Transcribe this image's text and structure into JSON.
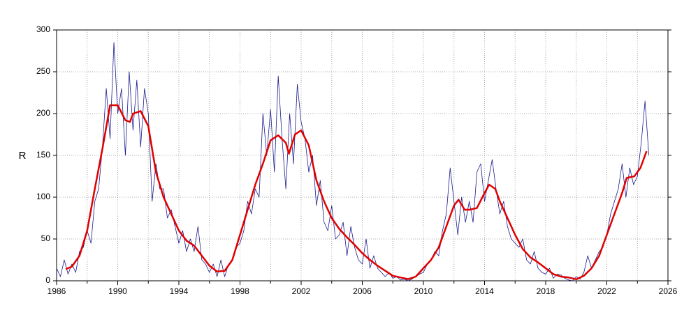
{
  "chart_data": {
    "type": "line",
    "ylabel": "R",
    "xlim": [
      1986,
      2026
    ],
    "ylim": [
      0,
      300
    ],
    "xticks": [
      1986,
      1990,
      1994,
      1998,
      2002,
      2006,
      2010,
      2014,
      2018,
      2022,
      2026
    ],
    "x_minor_ticks": [
      1988,
      1992,
      1996,
      2000,
      2004,
      2008,
      2012,
      2016,
      2020,
      2024
    ],
    "yticks": [
      0,
      50,
      100,
      150,
      200,
      250,
      300
    ],
    "grid": true,
    "series": [
      {
        "color": "#1a1a8c",
        "x": [
          1986,
          1986.25,
          1986.5,
          1986.75,
          1987,
          1987.25,
          1987.5,
          1987.75,
          1988,
          1988.25,
          1988.5,
          1988.75,
          1989,
          1989.25,
          1989.5,
          1989.75,
          1990,
          1990.25,
          1990.5,
          1990.75,
          1991,
          1991.25,
          1991.5,
          1991.75,
          1992,
          1992.25,
          1992.5,
          1992.75,
          1993,
          1993.25,
          1993.5,
          1993.75,
          1994,
          1994.25,
          1994.5,
          1994.75,
          1995,
          1995.25,
          1995.5,
          1995.75,
          1996,
          1996.25,
          1996.5,
          1996.75,
          1997,
          1997.25,
          1997.5,
          1997.75,
          1998,
          1998.25,
          1998.5,
          1998.75,
          1999,
          1999.25,
          1999.5,
          1999.75,
          2000,
          2000.25,
          2000.5,
          2000.75,
          2001,
          2001.25,
          2001.5,
          2001.75,
          2002,
          2002.25,
          2002.5,
          2002.75,
          2003,
          2003.25,
          2003.5,
          2003.75,
          2004,
          2004.25,
          2004.5,
          2004.75,
          2005,
          2005.25,
          2005.5,
          2005.75,
          2006,
          2006.25,
          2006.5,
          2006.75,
          2007,
          2007.25,
          2007.5,
          2007.75,
          2008,
          2008.25,
          2008.5,
          2008.75,
          2009,
          2009.25,
          2009.5,
          2009.75,
          2010,
          2010.25,
          2010.5,
          2010.75,
          2011,
          2011.25,
          2011.5,
          2011.75,
          2012,
          2012.25,
          2012.5,
          2012.75,
          2013,
          2013.25,
          2013.5,
          2013.75,
          2014,
          2014.25,
          2014.5,
          2014.75,
          2015,
          2015.25,
          2015.5,
          2015.75,
          2016,
          2016.25,
          2016.5,
          2016.75,
          2017,
          2017.25,
          2017.5,
          2017.75,
          2018,
          2018.25,
          2018.5,
          2018.75,
          2019,
          2019.25,
          2019.5,
          2019.75,
          2020,
          2020.25,
          2020.5,
          2020.75,
          2021,
          2021.25,
          2021.5,
          2021.75,
          2022,
          2022.25,
          2022.5,
          2022.75,
          2023,
          2023.25,
          2023.5,
          2023.75,
          2024,
          2024.25,
          2024.5,
          2024.75
        ],
        "values": [
          15,
          5,
          25,
          8,
          20,
          10,
          35,
          40,
          60,
          45,
          95,
          110,
          160,
          230,
          170,
          285,
          200,
          230,
          150,
          250,
          180,
          240,
          160,
          230,
          200,
          95,
          140,
          110,
          110,
          75,
          85,
          65,
          45,
          60,
          35,
          50,
          35,
          65,
          25,
          20,
          10,
          20,
          5,
          25,
          5,
          20,
          25,
          40,
          45,
          60,
          95,
          80,
          110,
          100,
          200,
          150,
          205,
          130,
          245,
          170,
          110,
          200,
          140,
          235,
          190,
          170,
          130,
          150,
          90,
          120,
          70,
          60,
          90,
          50,
          55,
          70,
          30,
          65,
          40,
          25,
          20,
          50,
          15,
          30,
          15,
          10,
          5,
          10,
          3,
          5,
          1,
          2,
          0,
          2,
          5,
          8,
          10,
          20,
          25,
          35,
          30,
          60,
          80,
          135,
          95,
          55,
          100,
          70,
          95,
          70,
          130,
          140,
          95,
          120,
          145,
          110,
          80,
          95,
          65,
          50,
          45,
          40,
          50,
          25,
          20,
          35,
          15,
          10,
          8,
          15,
          3,
          8,
          7,
          3,
          1,
          0,
          5,
          2,
          10,
          30,
          15,
          25,
          35,
          40,
          55,
          80,
          95,
          110,
          140,
          100,
          135,
          115,
          125,
          165,
          215,
          150
        ]
      },
      {
        "color": "#e00000",
        "x": [
          1986.6,
          1987,
          1987.5,
          1988,
          1988.5,
          1989,
          1989.5,
          1990,
          1990.5,
          1990.8,
          1991,
          1991.5,
          1992,
          1992.5,
          1993,
          1993.5,
          1994,
          1994.5,
          1995,
          1995.5,
          1996,
          1996.5,
          1997,
          1997.5,
          1998,
          1998.5,
          1999,
          1999.5,
          2000,
          2000.5,
          2001,
          2001.2,
          2001.6,
          2002,
          2002.5,
          2003,
          2003.5,
          2004,
          2004.5,
          2005,
          2005.5,
          2006,
          2006.5,
          2007,
          2007.5,
          2008,
          2008.5,
          2009,
          2009.5,
          2010,
          2010.5,
          2011,
          2011.5,
          2012,
          2012.3,
          2012.7,
          2013,
          2013.5,
          2014,
          2014.3,
          2014.7,
          2015,
          2015.5,
          2016,
          2016.5,
          2017,
          2017.5,
          2018,
          2018.5,
          2019,
          2019.5,
          2020,
          2020.5,
          2021,
          2021.5,
          2022,
          2022.5,
          2023,
          2023.3,
          2023.8,
          2024.2,
          2024.6
        ],
        "values": [
          14,
          17,
          30,
          60,
          110,
          158,
          210,
          210,
          192,
          190,
          200,
          203,
          185,
          130,
          100,
          80,
          60,
          48,
          42,
          30,
          18,
          11,
          12,
          25,
          55,
          85,
          115,
          140,
          168,
          174,
          165,
          152,
          175,
          180,
          162,
          120,
          95,
          75,
          62,
          52,
          43,
          33,
          25,
          18,
          12,
          6,
          4,
          2,
          5,
          15,
          25,
          40,
          65,
          90,
          97,
          85,
          85,
          87,
          105,
          115,
          110,
          95,
          75,
          55,
          38,
          28,
          22,
          15,
          8,
          5,
          4,
          1.8,
          6,
          15,
          30,
          55,
          80,
          105,
          123,
          125,
          135,
          155
        ]
      }
    ]
  }
}
